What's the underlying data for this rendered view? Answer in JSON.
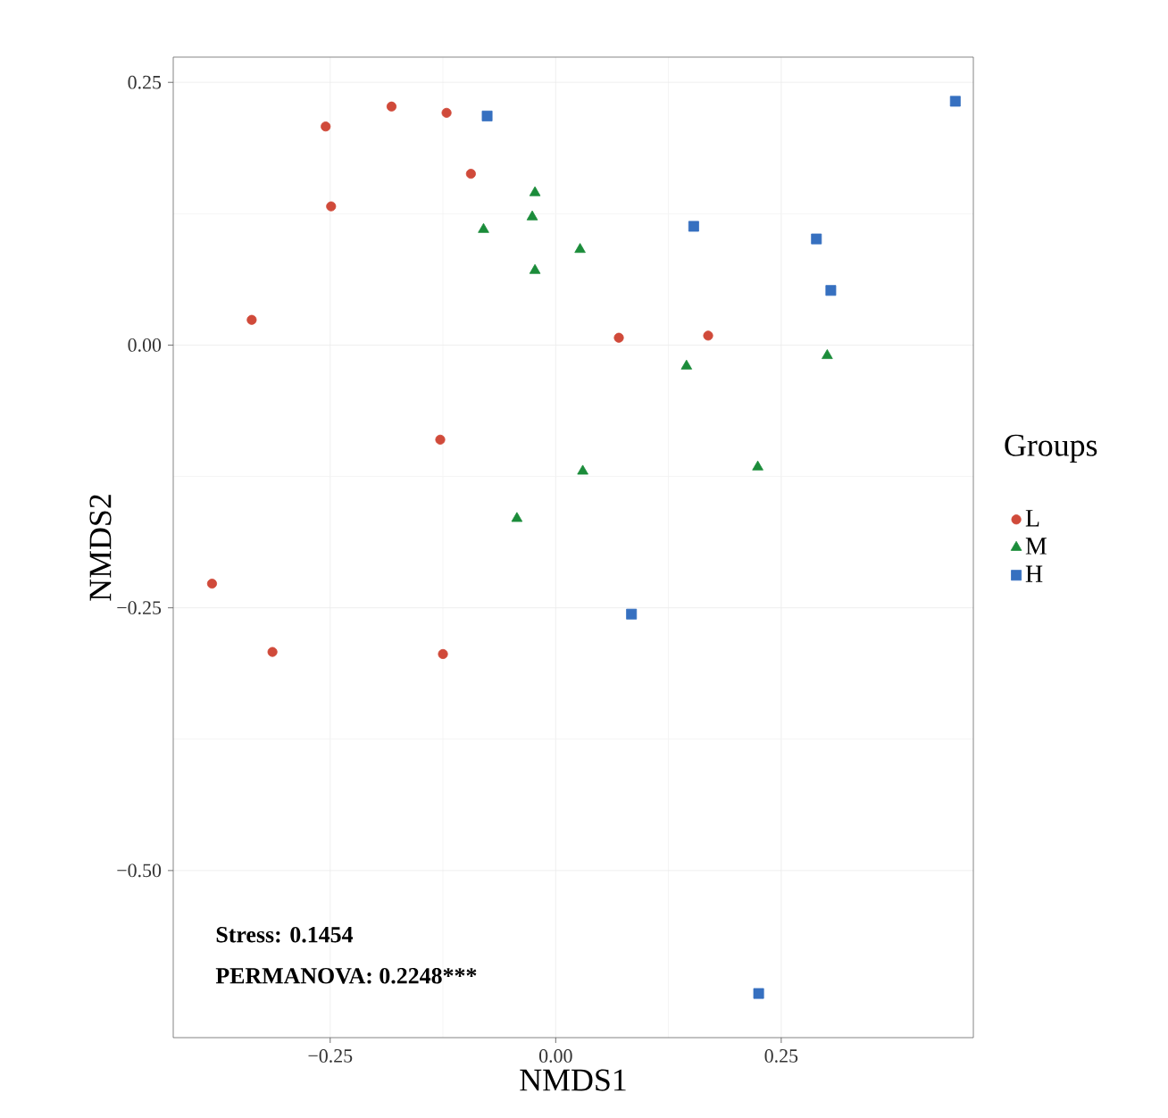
{
  "chart_data": {
    "type": "scatter",
    "xlabel": "NMDS1",
    "ylabel": "NMDS2",
    "legend_title": "Groups",
    "xlim": [
      -0.424,
      0.463
    ],
    "ylim": [
      -0.659,
      0.274
    ],
    "xticks": [
      {
        "value": -0.25,
        "label": "−0.25"
      },
      {
        "value": 0,
        "label": "0.00"
      },
      {
        "value": 0.25,
        "label": "0.25"
      }
    ],
    "yticks": [
      {
        "value": -0.5,
        "label": "−0.50"
      },
      {
        "value": -0.25,
        "label": "−0.25"
      },
      {
        "value": 0,
        "label": "0.00"
      },
      {
        "value": 0.25,
        "label": "0.25"
      }
    ],
    "grid": true,
    "legend": "right",
    "annotations": [
      "Stress: 0.1454",
      "PERMANOVA: 0.2248***"
    ],
    "series": [
      {
        "name": "L",
        "color": "#d04a3a",
        "marker": "circle",
        "x": [
          -0.255,
          -0.182,
          -0.121,
          -0.094,
          -0.249,
          -0.337,
          0.07,
          0.169,
          -0.128,
          -0.381,
          -0.314,
          -0.125
        ],
        "values": [
          0.208,
          0.227,
          0.221,
          0.163,
          0.132,
          0.024,
          0.007,
          0.009,
          -0.09,
          -0.227,
          -0.292,
          -0.294
        ]
      },
      {
        "name": "M",
        "color": "#1b8c3a",
        "marker": "triangle",
        "x": [
          -0.023,
          -0.026,
          -0.08,
          0.027,
          -0.023,
          0.145,
          0.301,
          0.03,
          0.224,
          -0.043
        ],
        "values": [
          0.145,
          0.122,
          0.11,
          0.091,
          0.071,
          -0.02,
          -0.01,
          -0.12,
          -0.116,
          -0.165
        ]
      },
      {
        "name": "H",
        "color": "#3670c0",
        "marker": "square",
        "x": [
          -0.076,
          0.443,
          0.153,
          0.289,
          0.305,
          0.084,
          0.225
        ],
        "values": [
          0.218,
          0.232,
          0.113,
          0.101,
          0.052,
          -0.256,
          -0.617
        ]
      }
    ]
  }
}
